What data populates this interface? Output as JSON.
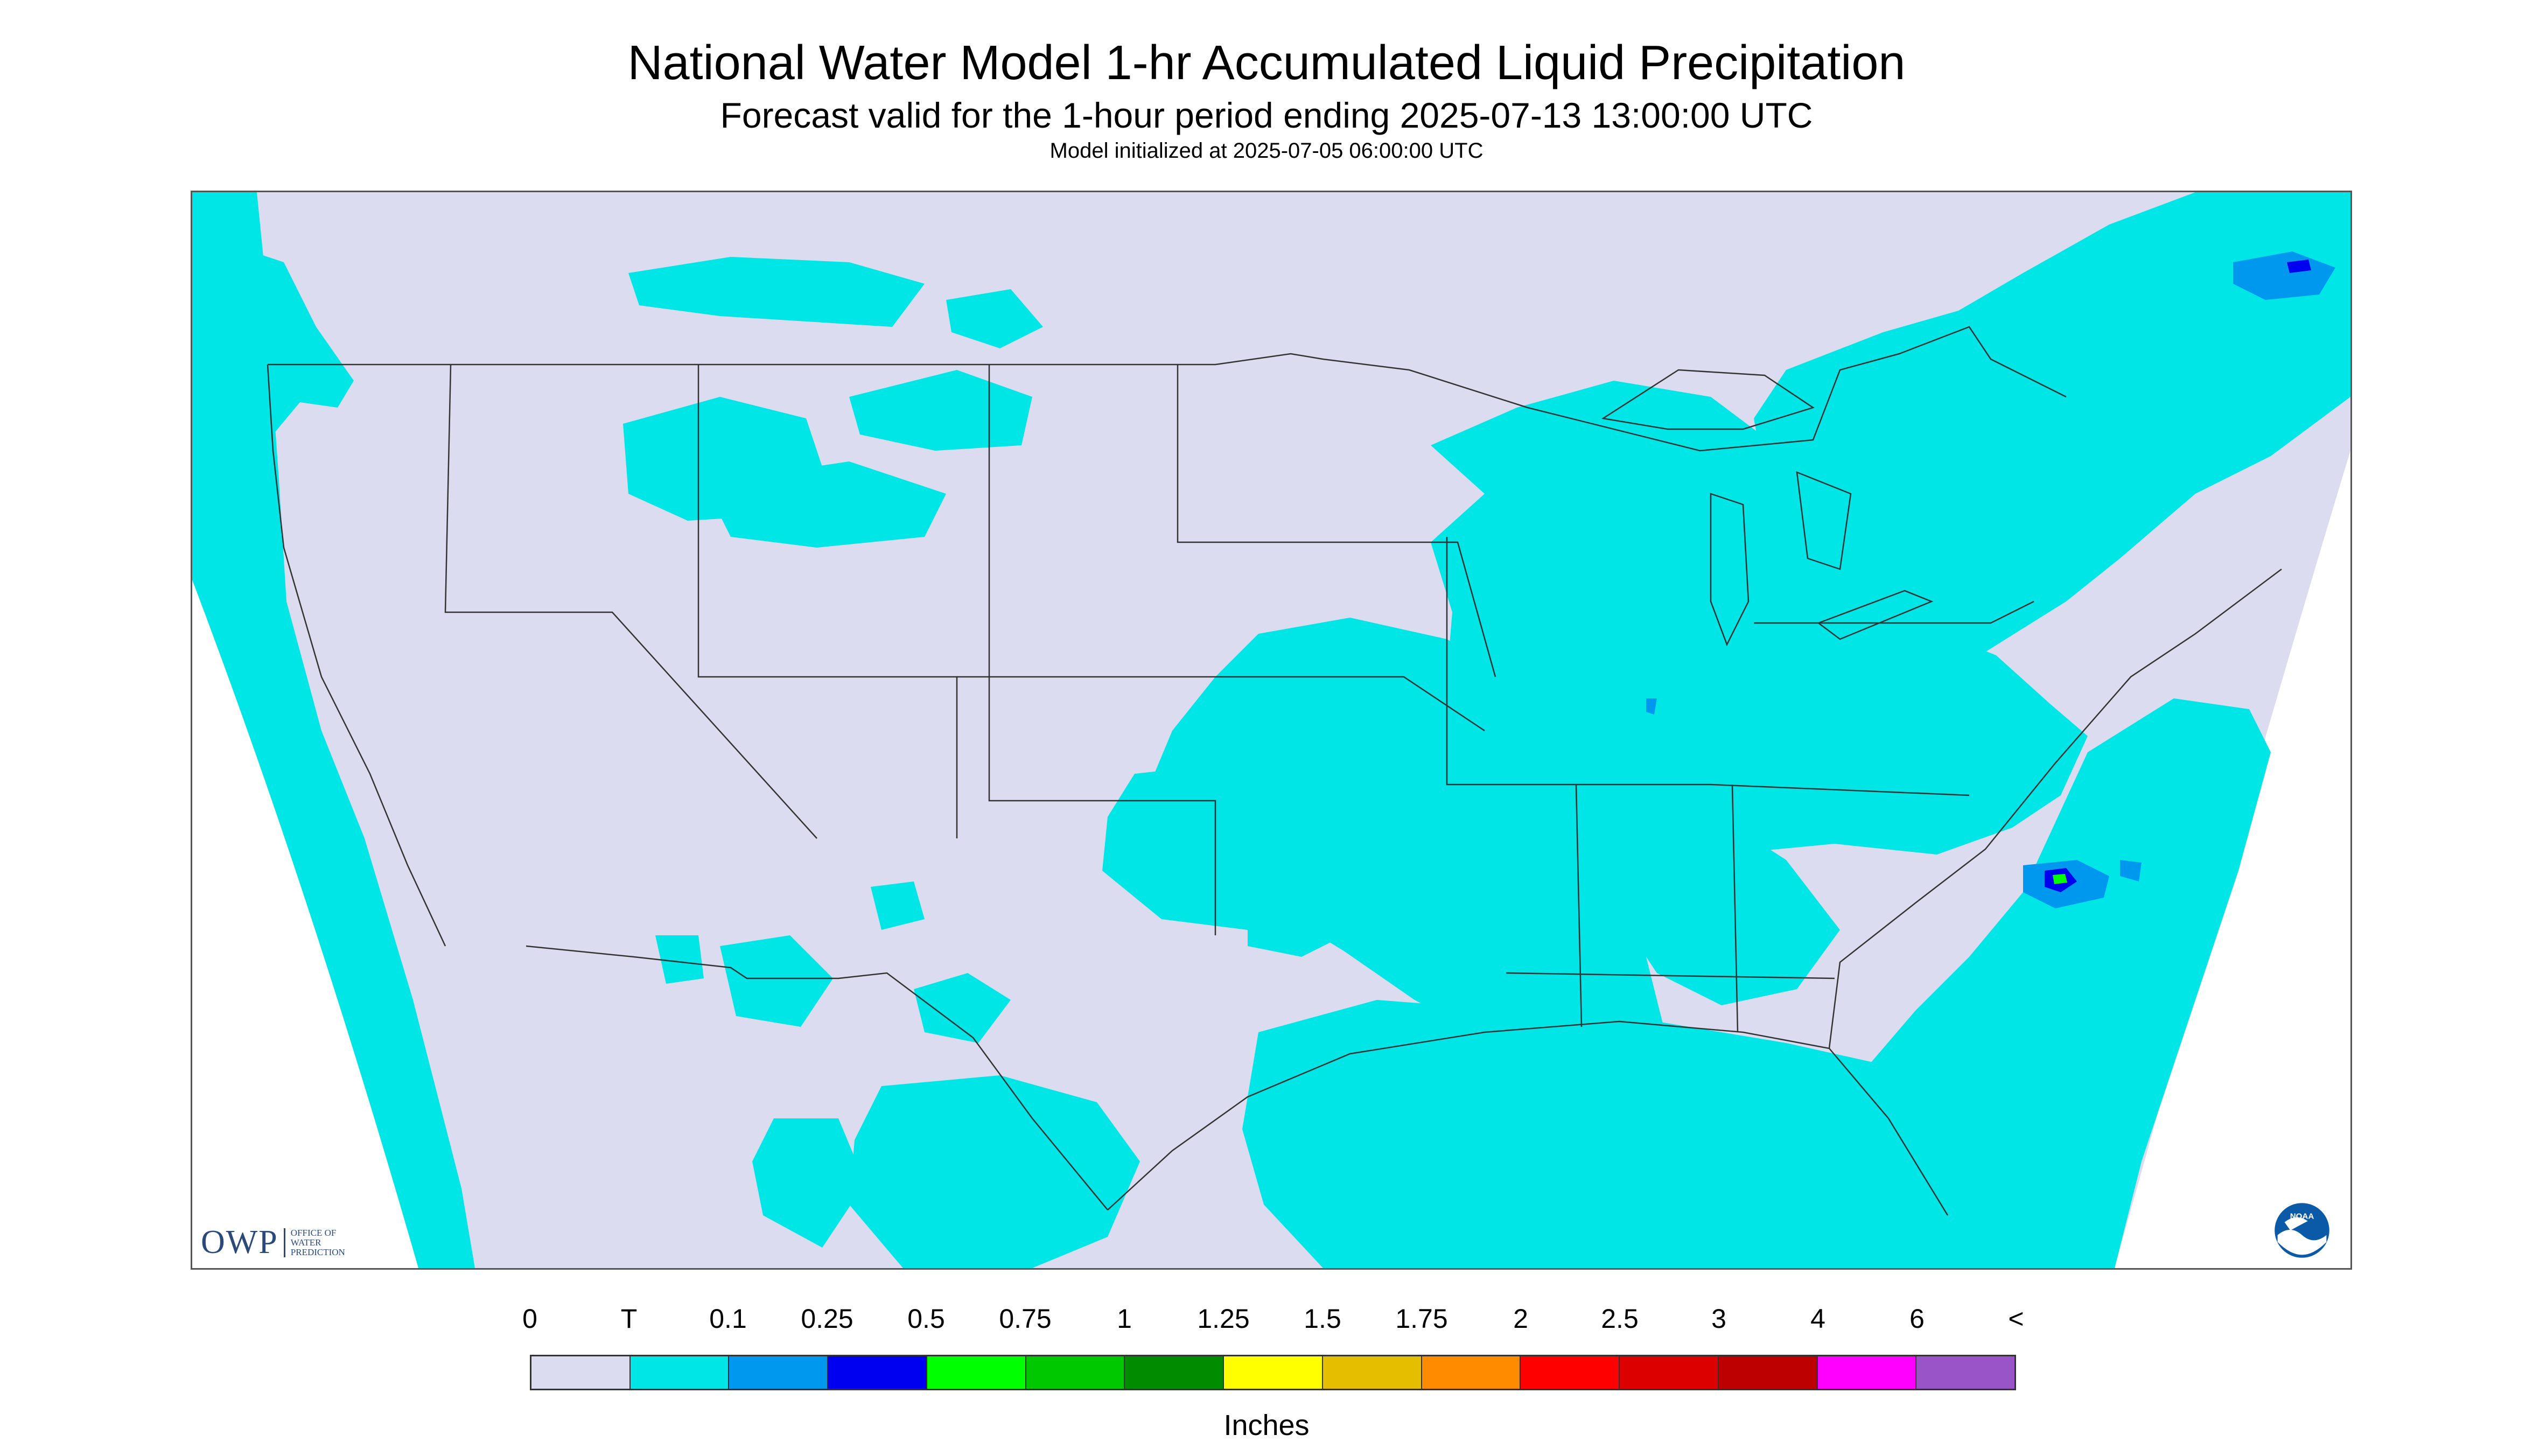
{
  "header": {
    "title": "National Water Model 1-hr Accumulated Liquid Precipitation",
    "subtitle": "Forecast valid for the 1-hour period ending 2025-07-13 13:00:00 UTC",
    "init": "Model initialized at 2025-07-05 06:00:00 UTC"
  },
  "legend": {
    "labels": [
      "0",
      "T",
      "0.1",
      "0.25",
      "0.5",
      "0.75",
      "1",
      "1.25",
      "1.5",
      "1.75",
      "2",
      "2.5",
      "3",
      "4",
      "6",
      "<"
    ],
    "colors": [
      "#dcdcf0",
      "#00e5e5",
      "#0097ef",
      "#0000f0",
      "#00ff00",
      "#00c800",
      "#008c00",
      "#ffff00",
      "#e6be00",
      "#ff8c00",
      "#ff0000",
      "#dc0000",
      "#bc0000",
      "#ff00ff",
      "#9955c8"
    ],
    "units": "Inches"
  },
  "map": {
    "background_color": "#dcdcf0",
    "trace_color": "#00e5e5",
    "light_color": "#0097ef",
    "moderate_color": "#0000f0",
    "heavy_color": "#00ff00",
    "outside_color": "#ffffff",
    "border_color": "#555555"
  },
  "logos": {
    "owp_mark": "OWP",
    "owp_line1": "OFFICE OF",
    "owp_line2": "WATER",
    "owp_line3": "PREDICTION",
    "owp_icon": "owp-logo-icon",
    "noaa_icon": "noaa-logo-icon",
    "noaa_text": "NOAA"
  }
}
